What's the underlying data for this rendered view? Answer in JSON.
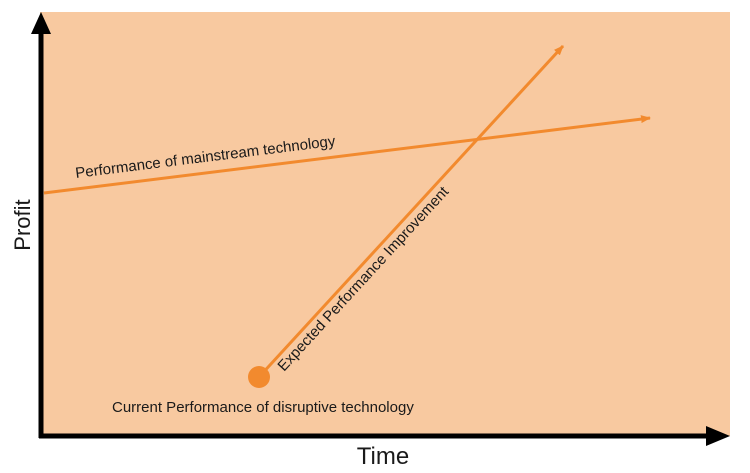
{
  "axes": {
    "x_label": "Time",
    "y_label": "Profit"
  },
  "lines": {
    "mainstream_label": "Performance of mainstream technology",
    "disruptive_label": "Expected Performance Improvement"
  },
  "point": {
    "label": "Current Performance of disruptive technology"
  },
  "colors": {
    "background": "#f8c9a0",
    "accent": "#f28a2e",
    "axis": "#000000"
  }
}
